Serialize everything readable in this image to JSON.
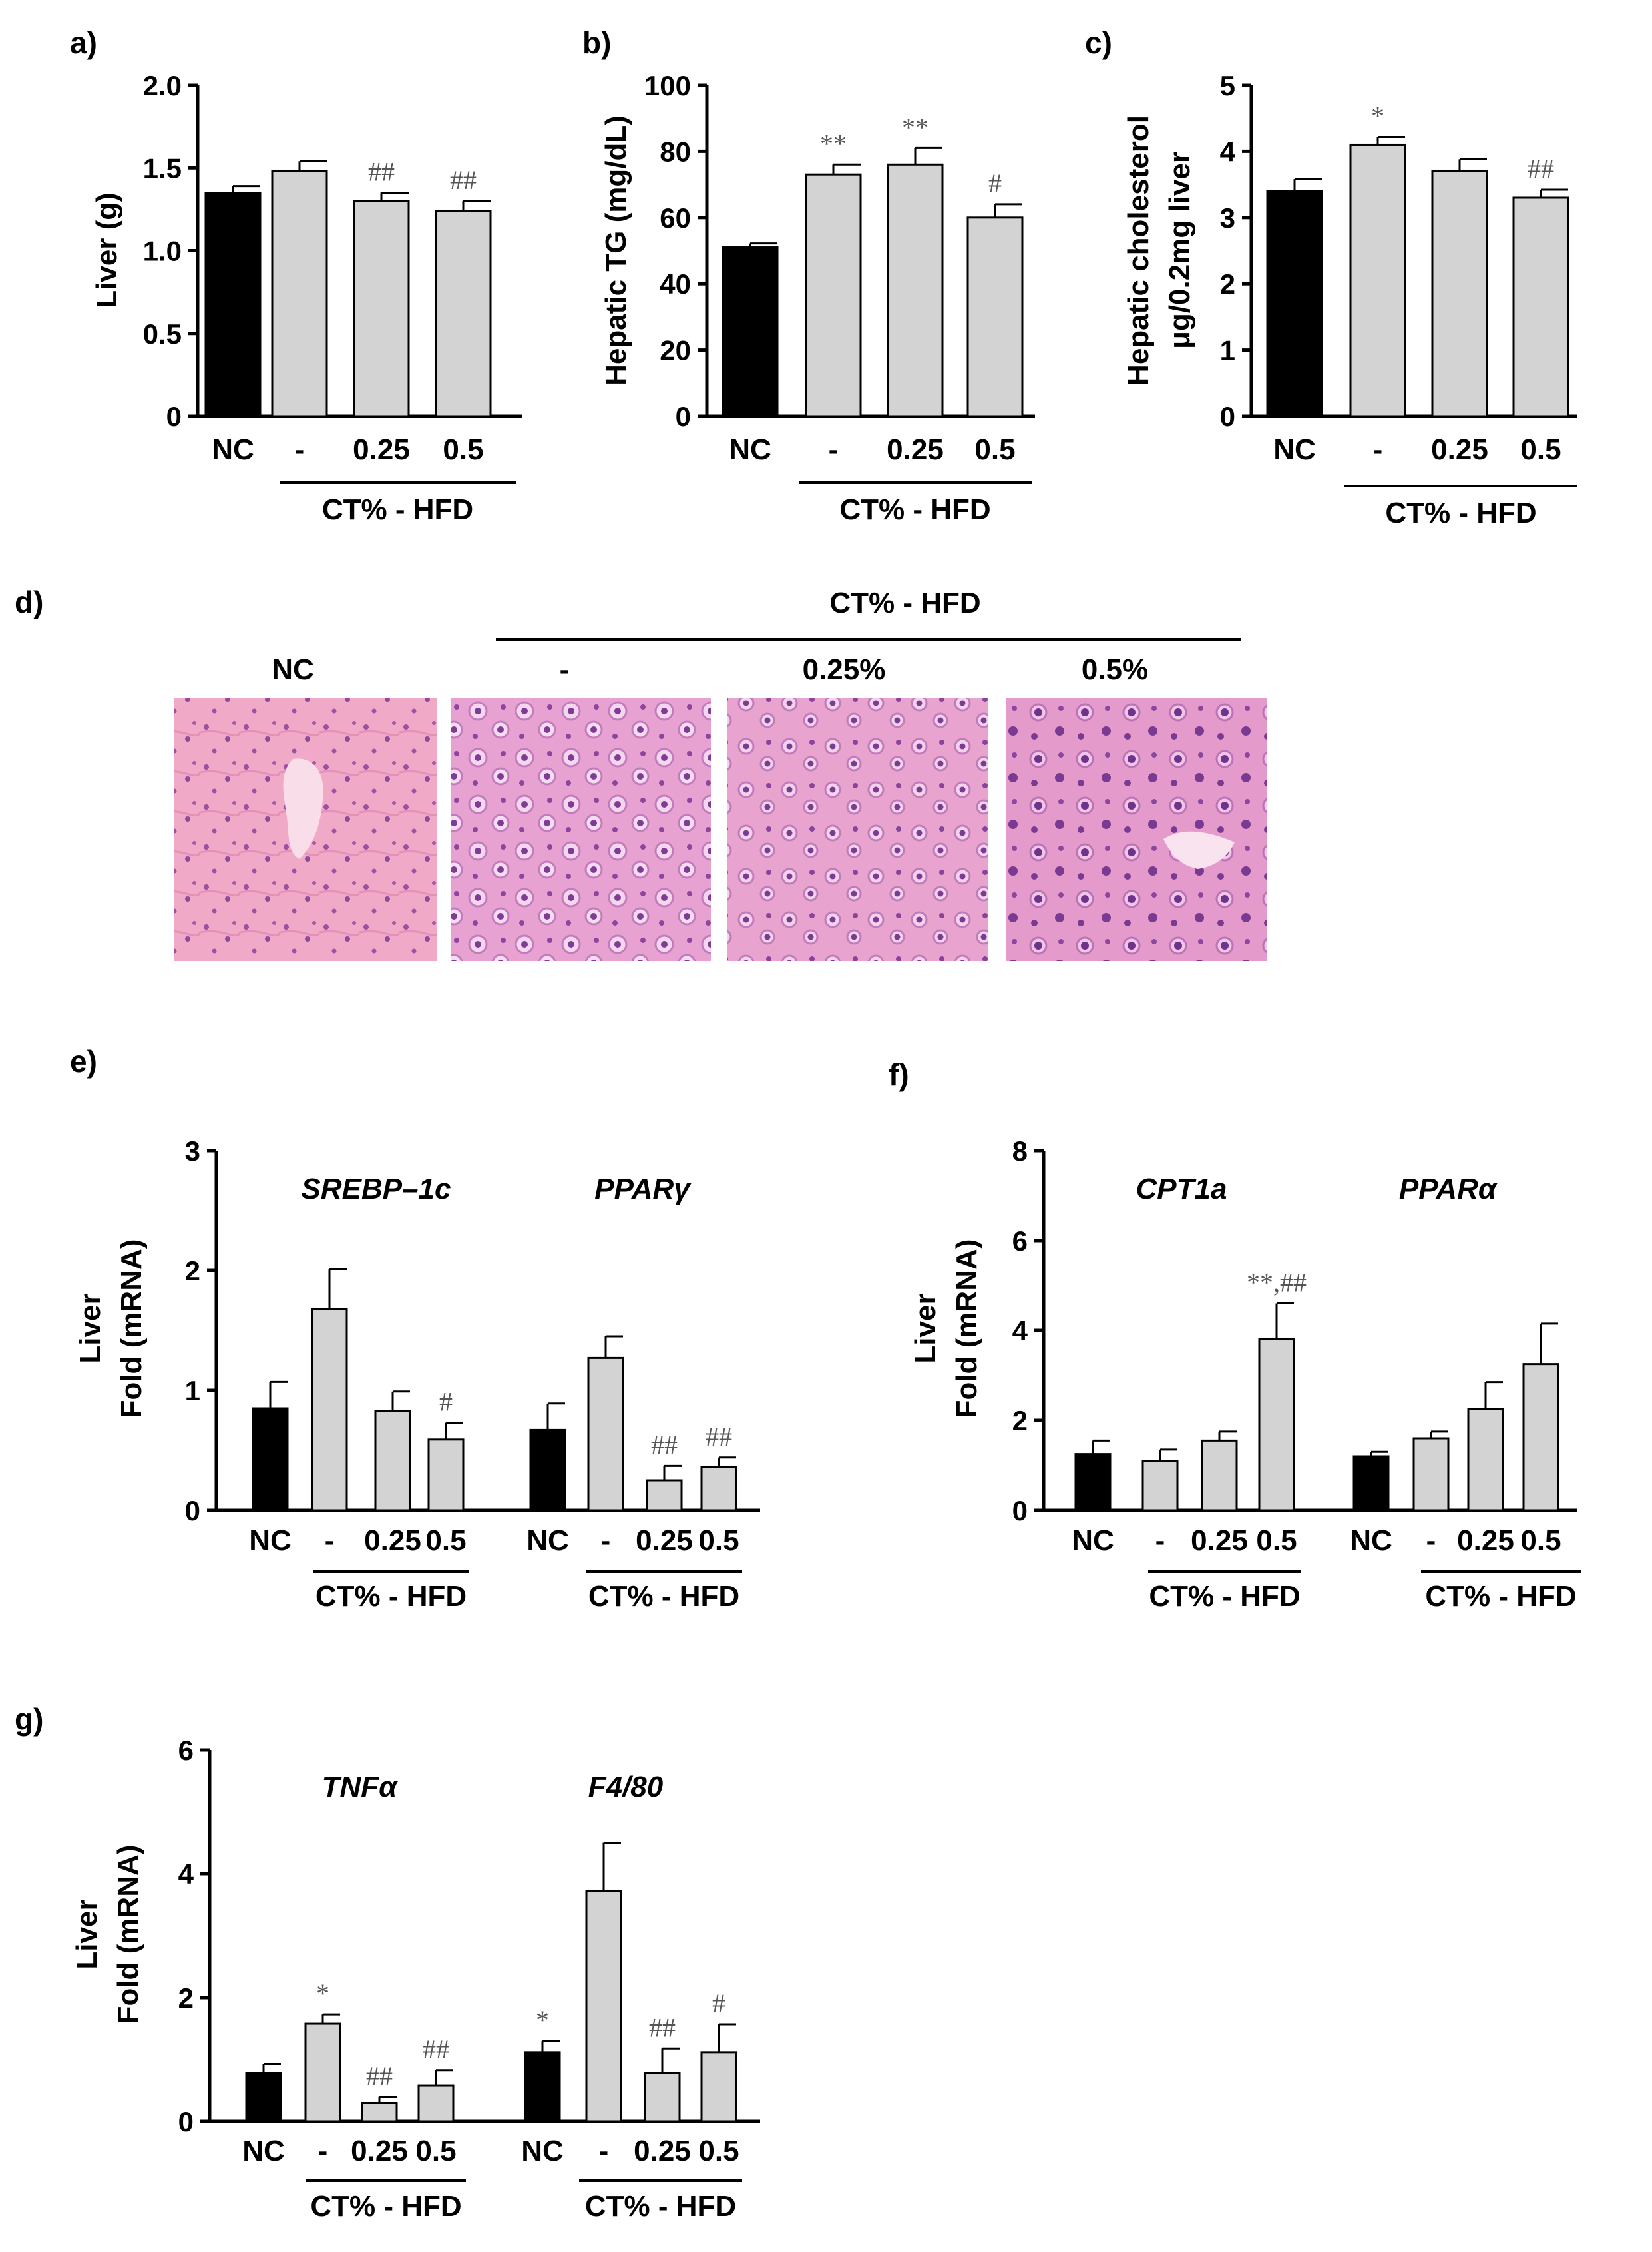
{
  "chart_data": [
    {
      "type": "bar",
      "panel": "a)",
      "ylabel": "Liver (g)",
      "ylim": [
        0,
        2.0
      ],
      "yticks": [
        "0",
        "0.5",
        "1.0",
        "1.5",
        "2.0"
      ],
      "categories": [
        "NC",
        "-",
        "0.25",
        "0.5"
      ],
      "values": [
        1.35,
        1.48,
        1.3,
        1.24
      ],
      "errors": [
        0.04,
        0.06,
        0.05,
        0.06
      ],
      "colors": [
        "#000000",
        "#d3d3d3",
        "#d3d3d3",
        "#d3d3d3"
      ],
      "significance": [
        "",
        "",
        "##",
        "##"
      ],
      "group_label": "CT% - HFD"
    },
    {
      "type": "bar",
      "panel": "b)",
      "ylabel": "Hepatic TG (mg/dL)",
      "ylim": [
        0,
        100
      ],
      "yticks": [
        "0",
        "20",
        "40",
        "60",
        "80",
        "100"
      ],
      "categories": [
        "NC",
        "-",
        "0.25",
        "0.5"
      ],
      "values": [
        51,
        73,
        76,
        60
      ],
      "errors": [
        1.2,
        3,
        5,
        4
      ],
      "colors": [
        "#000000",
        "#d3d3d3",
        "#d3d3d3",
        "#d3d3d3"
      ],
      "significance": [
        "",
        "**",
        "**",
        "#"
      ],
      "group_label": "CT% - HFD"
    },
    {
      "type": "bar",
      "panel": "c)",
      "ylabel": "Hepatic cholesterol",
      "ylabel2": "μg/0.2mg liver",
      "ylim": [
        0,
        5
      ],
      "yticks": [
        "0",
        "1",
        "2",
        "3",
        "4",
        "5"
      ],
      "categories": [
        "NC",
        "-",
        "0.25",
        "0.5"
      ],
      "values": [
        3.4,
        4.1,
        3.7,
        3.3
      ],
      "errors": [
        0.18,
        0.12,
        0.18,
        0.12
      ],
      "colors": [
        "#000000",
        "#d3d3d3",
        "#d3d3d3",
        "#d3d3d3"
      ],
      "significance": [
        "",
        "*",
        "",
        "##"
      ],
      "group_label": "CT% - HFD"
    },
    {
      "type": "bar",
      "panel": "e)",
      "ylabel": "Liver",
      "ylabel2": "Fold (mRNA)",
      "ylim": [
        0,
        3
      ],
      "yticks": [
        "0",
        "1",
        "2",
        "3"
      ],
      "categories": [
        "NC",
        "-",
        "0.25",
        "0.5"
      ],
      "group_label": "CT% - HFD",
      "series": [
        {
          "name": "SREBP–1c",
          "values": [
            0.85,
            1.68,
            0.83,
            0.59
          ],
          "errors": [
            0.22,
            0.33,
            0.16,
            0.14
          ],
          "significance": [
            "",
            "",
            "",
            "#"
          ]
        },
        {
          "name": "PPARγ",
          "values": [
            0.67,
            1.27,
            0.25,
            0.36
          ],
          "errors": [
            0.22,
            0.18,
            0.12,
            0.08
          ],
          "significance": [
            "",
            "",
            "##",
            "##"
          ]
        }
      ]
    },
    {
      "type": "bar",
      "panel": "f)",
      "ylabel": "Liver",
      "ylabel2": "Fold (mRNA)",
      "ylim": [
        0,
        8
      ],
      "yticks": [
        "0",
        "2",
        "4",
        "6",
        "8"
      ],
      "categories": [
        "NC",
        "-",
        "0.25",
        "0.5"
      ],
      "group_label": "CT% - HFD",
      "series": [
        {
          "name": "CPT1a",
          "values": [
            1.25,
            1.1,
            1.55,
            3.8
          ],
          "errors": [
            0.3,
            0.25,
            0.2,
            0.8
          ],
          "significance": [
            "",
            "",
            "",
            "**,##"
          ]
        },
        {
          "name": "PPARα",
          "values": [
            1.2,
            1.6,
            2.25,
            3.25
          ],
          "errors": [
            0.1,
            0.15,
            0.6,
            0.9
          ],
          "significance": [
            "",
            "",
            "",
            ""
          ]
        }
      ]
    },
    {
      "type": "bar",
      "panel": "g)",
      "ylabel": "Liver",
      "ylabel2": "Fold (mRNA)",
      "ylim": [
        0,
        6
      ],
      "yticks": [
        "0",
        "2",
        "4",
        "6"
      ],
      "categories": [
        "NC",
        "-",
        "0.25",
        "0.5"
      ],
      "group_label": "CT% - HFD",
      "series": [
        {
          "name": "TNFα",
          "values": [
            0.78,
            1.58,
            0.3,
            0.58
          ],
          "errors": [
            0.15,
            0.15,
            0.1,
            0.25
          ],
          "significance": [
            "",
            "*",
            "##",
            "##"
          ]
        },
        {
          "name": "F4/80",
          "values": [
            1.12,
            3.72,
            0.78,
            1.12
          ],
          "errors": [
            0.18,
            0.78,
            0.4,
            0.45
          ],
          "significance": [
            "*",
            "",
            "##",
            "#"
          ]
        }
      ]
    }
  ],
  "histology": {
    "panel": "d)",
    "group_label": "CT% - HFD",
    "labels": [
      "NC",
      "-",
      "0.25%",
      "0.5%"
    ]
  }
}
